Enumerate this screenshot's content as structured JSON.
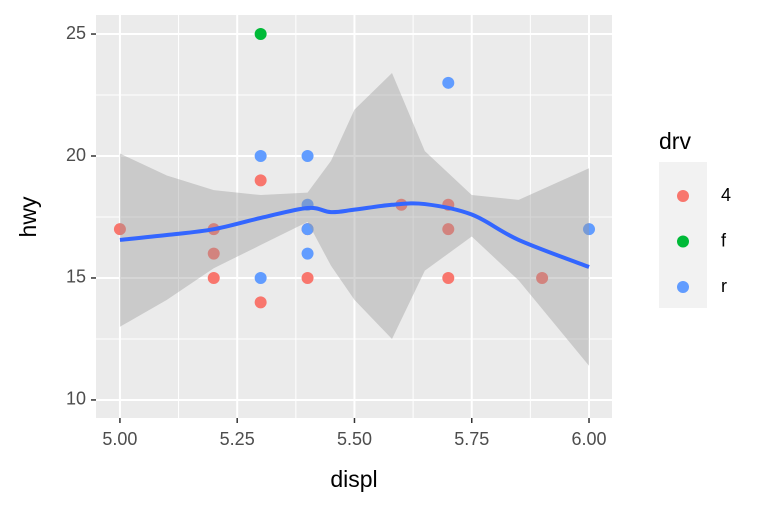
{
  "chart_data": {
    "type": "scatter",
    "x_label": "displ",
    "y_label": "hwy",
    "xlim": [
      4.949,
      6.049
    ],
    "ylim": [
      9.26,
      25.78
    ],
    "xticks": [
      {
        "value": 5,
        "label": "5.00"
      },
      {
        "value": 5.25,
        "label": "5.25"
      },
      {
        "value": 5.5,
        "label": "5.50"
      },
      {
        "value": 5.75,
        "label": "5.75"
      },
      {
        "value": 6,
        "label": "6.00"
      }
    ],
    "yticks": [
      10,
      15,
      20,
      25
    ],
    "grid": true,
    "legend_title": "drv",
    "series": [
      {
        "name": "4",
        "color": "#F8766D",
        "x": [
          5.0,
          5.2,
          5.2,
          5.2,
          5.3,
          5.3,
          5.4,
          5.4,
          5.6,
          5.7,
          5.7,
          5.7,
          5.9
        ],
        "values": [
          17,
          17,
          16,
          15,
          19,
          14,
          17,
          15,
          18,
          18,
          17,
          15,
          15
        ]
      },
      {
        "name": "f",
        "color": "#00BA38",
        "x": [
          5.3
        ],
        "values": [
          25
        ]
      },
      {
        "name": "r",
        "color": "#619CFF",
        "x": [
          5.3,
          5.3,
          5.4,
          5.4,
          5.4,
          5.4,
          5.7,
          6.0
        ],
        "values": [
          20,
          15,
          20,
          18,
          17,
          16,
          23,
          17
        ]
      }
    ],
    "smooth": {
      "color": "#3366FF",
      "x": [
        5.0,
        5.1,
        5.2,
        5.3,
        5.4,
        5.45,
        5.5,
        5.58,
        5.65,
        5.75,
        5.85,
        6.0
      ],
      "y": [
        16.56,
        16.76,
        17.0,
        17.46,
        17.87,
        17.7,
        17.8,
        18.0,
        18.03,
        17.6,
        16.56,
        15.45
      ],
      "ymax": [
        20.1,
        19.2,
        18.6,
        18.4,
        18.5,
        19.8,
        21.9,
        23.4,
        20.2,
        18.4,
        18.2,
        19.5
      ],
      "ymin": [
        13.0,
        14.1,
        15.4,
        16.35,
        17.3,
        15.5,
        14.1,
        12.5,
        15.3,
        16.7,
        14.9,
        11.4
      ]
    }
  }
}
